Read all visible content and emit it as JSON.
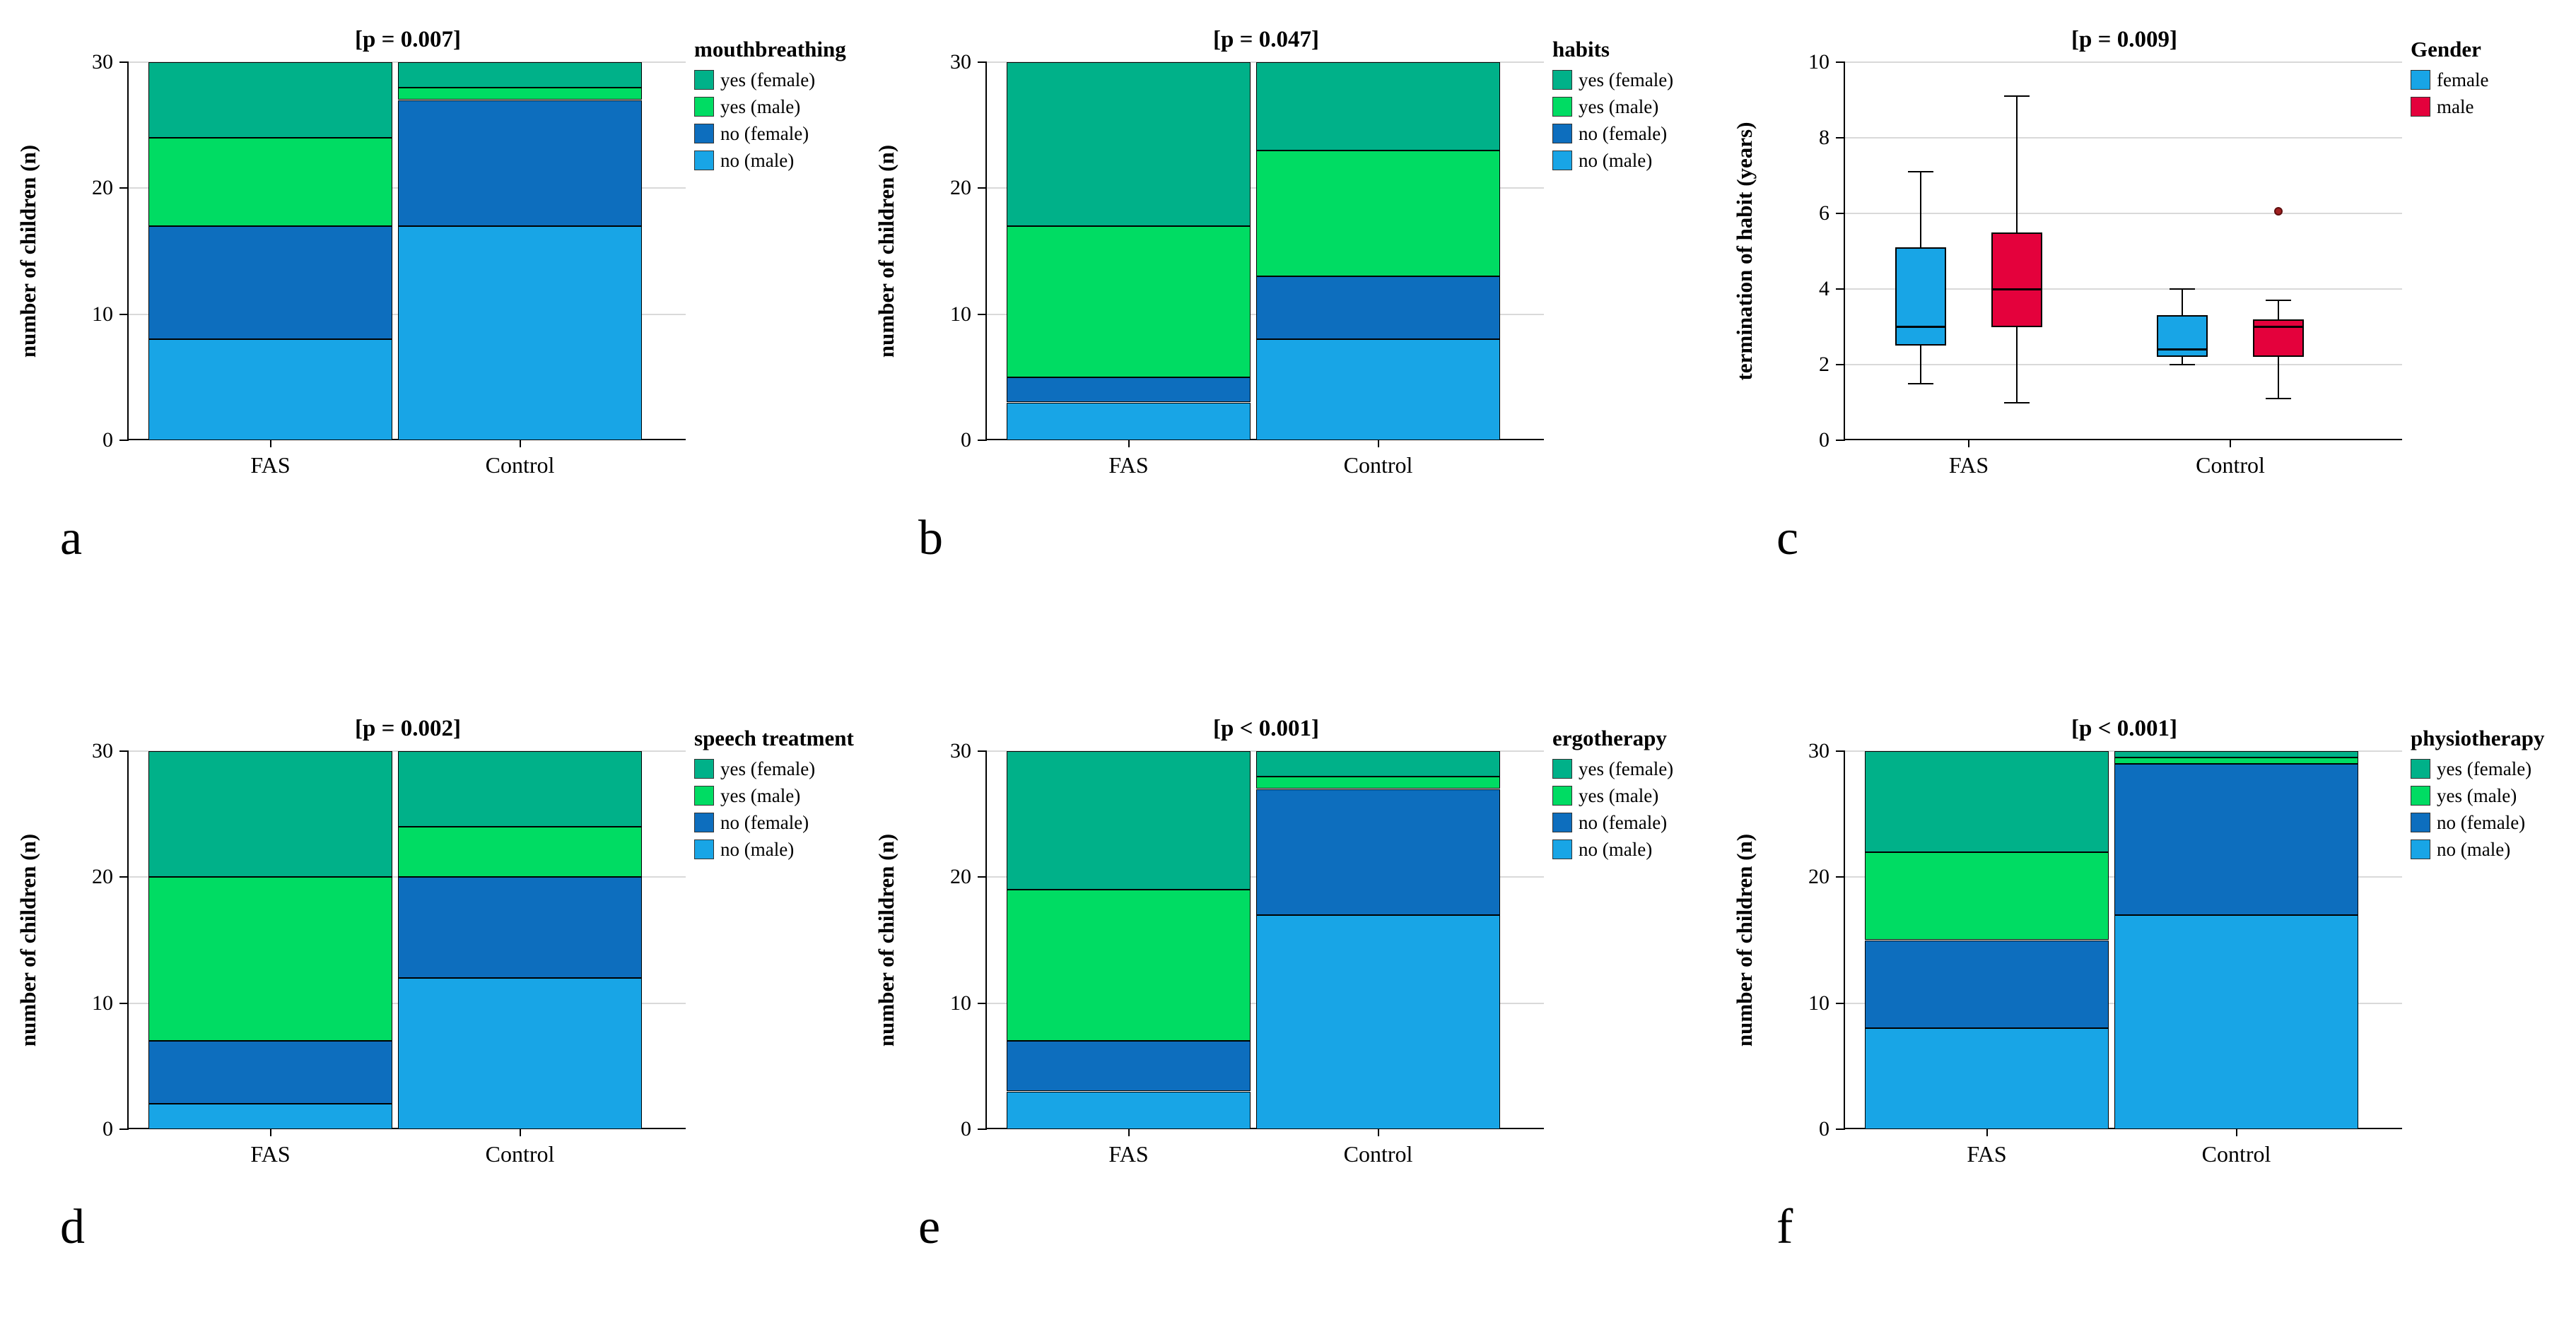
{
  "figure": {
    "background": "#ffffff",
    "axis_color": "#000000",
    "grid_color": "#d9d9d9"
  },
  "chart_data": [
    {
      "letter": "a",
      "type": "stacked_bar",
      "title": "[p = 0.007]",
      "ylabel": "number of children (n)",
      "ylim": [
        0,
        30
      ],
      "yticks": [
        0,
        10,
        20,
        30
      ],
      "categories": [
        "FAS",
        "Control"
      ],
      "legend_title": "mouthbreathing",
      "legend_position": "right",
      "grid": true,
      "series": [
        {
          "name": "yes (female)",
          "color": "#00B189",
          "values": [
            6,
            2
          ]
        },
        {
          "name": "yes (male)",
          "color": "#00DC63",
          "values": [
            7,
            1
          ]
        },
        {
          "name": "no (female)",
          "color": "#0D6EBE",
          "values": [
            9,
            10
          ]
        },
        {
          "name": "no (male)",
          "color": "#18A5E6",
          "values": [
            8,
            17
          ]
        }
      ]
    },
    {
      "letter": "b",
      "type": "stacked_bar",
      "title": "[p = 0.047]",
      "ylabel": "number of children (n)",
      "ylim": [
        0,
        30
      ],
      "yticks": [
        0,
        10,
        20,
        30
      ],
      "categories": [
        "FAS",
        "Control"
      ],
      "legend_title": "habits",
      "legend_position": "right",
      "grid": true,
      "series": [
        {
          "name": "yes (female)",
          "color": "#00B189",
          "values": [
            13,
            7
          ]
        },
        {
          "name": "yes (male)",
          "color": "#00DC63",
          "values": [
            12,
            10
          ]
        },
        {
          "name": "no (female)",
          "color": "#0D6EBE",
          "values": [
            2,
            5
          ]
        },
        {
          "name": "no (male)",
          "color": "#18A5E6",
          "values": [
            3,
            8
          ]
        }
      ]
    },
    {
      "letter": "c",
      "type": "grouped_box",
      "title": "[p = 0.009]",
      "ylabel": "termination of habit (years)",
      "ylim": [
        0,
        10
      ],
      "yticks": [
        0,
        2,
        4,
        6,
        8,
        10
      ],
      "categories": [
        "FAS",
        "Control"
      ],
      "legend_title": "Gender",
      "legend_position": "right",
      "grid": true,
      "series": [
        {
          "name": "female",
          "color": "#18A5E6",
          "boxes": [
            {
              "whisker_low": 1.5,
              "q1": 2.5,
              "median": 3.0,
              "q3": 5.1,
              "whisker_high": 7.1,
              "outliers": []
            },
            {
              "whisker_low": 2.0,
              "q1": 2.2,
              "median": 2.4,
              "q3": 3.3,
              "whisker_high": 4.0,
              "outliers": []
            }
          ]
        },
        {
          "name": "male",
          "color": "#E4013C",
          "boxes": [
            {
              "whisker_low": 1.0,
              "q1": 3.0,
              "median": 4.0,
              "q3": 5.5,
              "whisker_high": 9.1,
              "outliers": []
            },
            {
              "whisker_low": 1.1,
              "q1": 2.2,
              "median": 3.0,
              "q3": 3.2,
              "whisker_high": 3.7,
              "outliers": [
                6.05
              ]
            }
          ]
        }
      ]
    },
    {
      "letter": "d",
      "type": "stacked_bar",
      "title": "[p = 0.002]",
      "ylabel": "number of children (n)",
      "ylim": [
        0,
        30
      ],
      "yticks": [
        0,
        10,
        20,
        30
      ],
      "categories": [
        "FAS",
        "Control"
      ],
      "legend_title": "speech treatment",
      "legend_position": "right",
      "grid": true,
      "series": [
        {
          "name": "yes (female)",
          "color": "#00B189",
          "values": [
            10,
            6
          ]
        },
        {
          "name": "yes (male)",
          "color": "#00DC63",
          "values": [
            13,
            4
          ]
        },
        {
          "name": "no (female)",
          "color": "#0D6EBE",
          "values": [
            5,
            8
          ]
        },
        {
          "name": "no (male)",
          "color": "#18A5E6",
          "values": [
            2,
            12
          ]
        }
      ]
    },
    {
      "letter": "e",
      "type": "stacked_bar",
      "title": "[p < 0.001]",
      "ylabel": "number of children (n)",
      "ylim": [
        0,
        30
      ],
      "yticks": [
        0,
        10,
        20,
        30
      ],
      "categories": [
        "FAS",
        "Control"
      ],
      "legend_title": "ergotherapy",
      "legend_position": "right",
      "grid": true,
      "series": [
        {
          "name": "yes (female)",
          "color": "#00B189",
          "values": [
            11,
            2
          ]
        },
        {
          "name": "yes (male)",
          "color": "#00DC63",
          "values": [
            12,
            1
          ]
        },
        {
          "name": "no (female)",
          "color": "#0D6EBE",
          "values": [
            4,
            10
          ]
        },
        {
          "name": "no (male)",
          "color": "#18A5E6",
          "values": [
            3,
            17
          ]
        }
      ]
    },
    {
      "letter": "f",
      "type": "stacked_bar",
      "title": "[p < 0.001]",
      "ylabel": "number of children (n)",
      "ylim": [
        0,
        30
      ],
      "yticks": [
        0,
        10,
        20,
        30
      ],
      "categories": [
        "FAS",
        "Control"
      ],
      "legend_title": "physiotherapy",
      "legend_position": "right",
      "grid": true,
      "series": [
        {
          "name": "yes (female)",
          "color": "#00B189",
          "values": [
            8,
            0.5
          ]
        },
        {
          "name": "yes (male)",
          "color": "#00DC63",
          "values": [
            7,
            0.5
          ]
        },
        {
          "name": "no (female)",
          "color": "#0D6EBE",
          "values": [
            7,
            12
          ]
        },
        {
          "name": "no (male)",
          "color": "#18A5E6",
          "values": [
            8,
            17
          ]
        }
      ]
    }
  ]
}
